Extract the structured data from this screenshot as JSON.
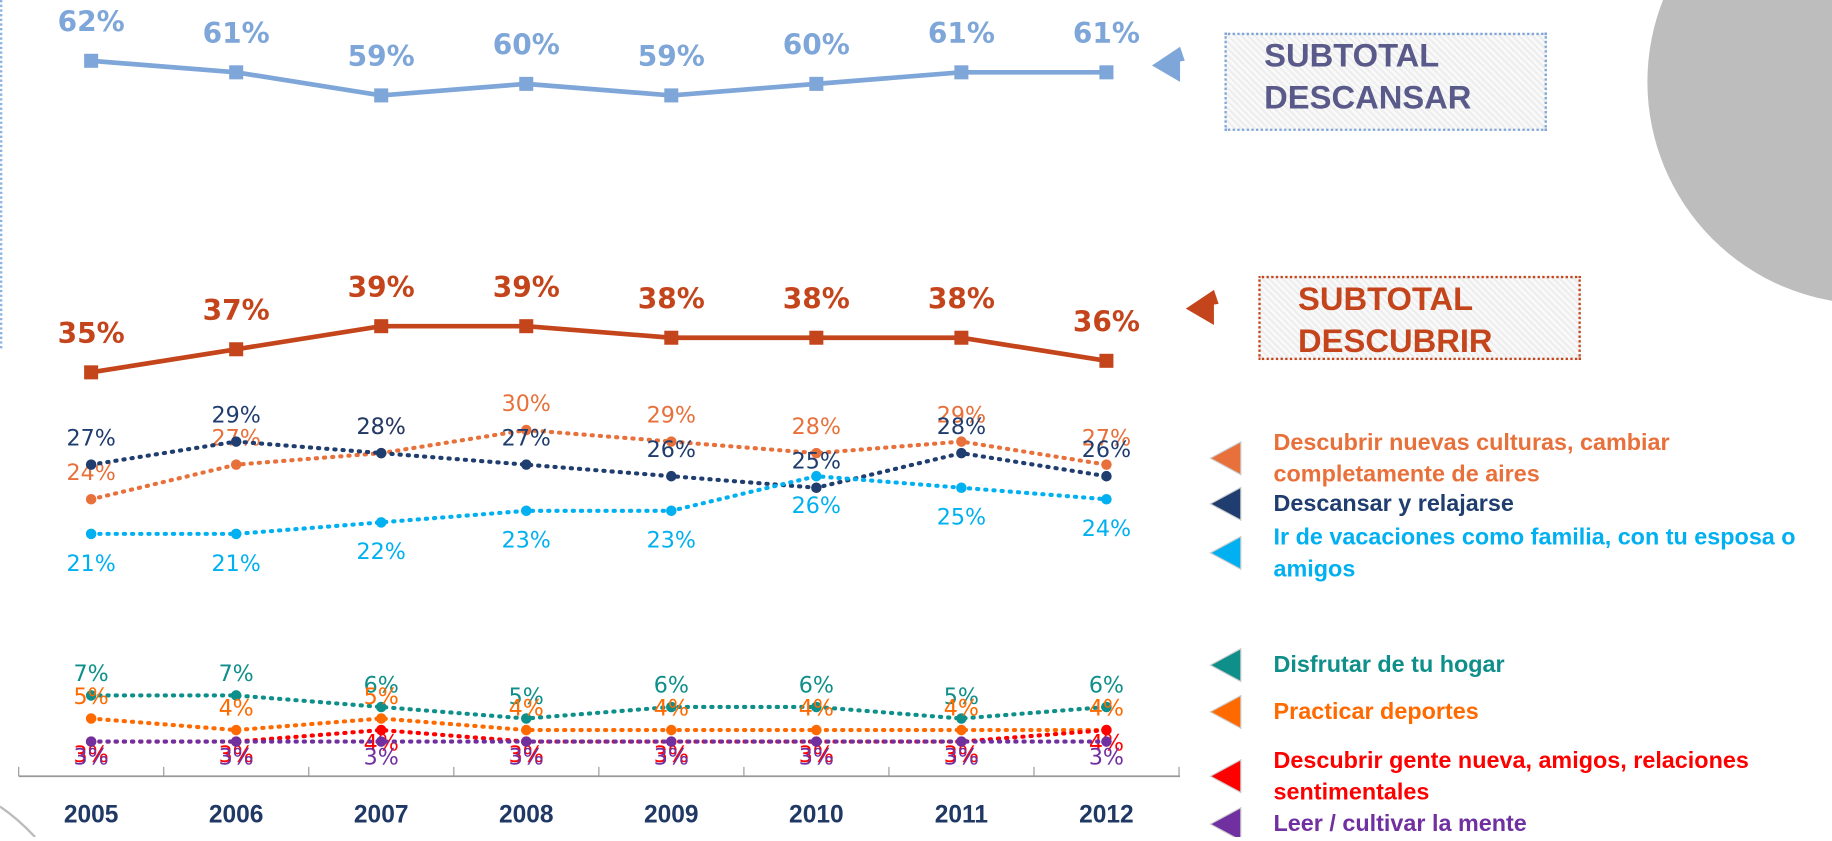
{
  "chart_data": {
    "type": "line",
    "categories": [
      "2005",
      "2006",
      "2007",
      "2008",
      "2009",
      "2010",
      "2011",
      "2012"
    ],
    "ylim": [
      0,
      67
    ],
    "series": [
      {
        "name": "SUBTOTAL DESCANSAR",
        "color": "#7ea6d8",
        "line_style": "solid",
        "values": [
          62,
          61,
          59,
          60,
          59,
          60,
          61,
          61
        ],
        "value_labels": [
          "62%",
          "61%",
          "59%",
          "60%",
          "59%",
          "60%",
          "61%",
          "61%"
        ]
      },
      {
        "name": "SUBTOTAL DESCUBRIR",
        "color": "#c4451c",
        "line_style": "solid",
        "values": [
          35,
          37,
          39,
          39,
          38,
          38,
          38,
          36
        ],
        "value_labels": [
          "35%",
          "37%",
          "39%",
          "39%",
          "38%",
          "38%",
          "38%",
          "36%"
        ]
      },
      {
        "name": "Descubrir nuevas culturas, cambiar completamente de aires",
        "color": "#e8703a",
        "line_style": "dotted",
        "values": [
          24,
          27,
          28,
          30,
          29,
          28,
          29,
          27
        ],
        "value_labels": [
          "24%",
          "27%",
          "28%",
          "30%",
          "29%",
          "28%",
          "29%",
          "27%"
        ]
      },
      {
        "name": "Descansar y relajarse",
        "color": "#1f3d6e",
        "line_style": "dotted",
        "values": [
          27,
          29,
          28,
          27,
          26,
          25,
          28,
          26
        ],
        "value_labels": [
          "27%",
          "29%",
          "28%",
          "27%",
          "26%",
          "25%",
          "28%",
          "26%"
        ]
      },
      {
        "name": "Ir de vacaciones como familia, con tu esposa o amigos",
        "color": "#00b0f0",
        "line_style": "dotted",
        "values": [
          21,
          21,
          22,
          23,
          23,
          26,
          25,
          24
        ],
        "value_labels": [
          "21%",
          "21%",
          "22%",
          "23%",
          "23%",
          "26%",
          "25%",
          "24%"
        ]
      },
      {
        "name": "Disfrutar de tu hogar",
        "color": "#0e8f8a",
        "line_style": "dotted",
        "values": [
          7,
          7,
          6,
          5,
          6,
          6,
          5,
          6
        ],
        "value_labels": [
          "7%",
          "7%",
          "6%",
          "5%",
          "6%",
          "6%",
          "5%",
          "6%"
        ]
      },
      {
        "name": "Practicar deportes",
        "color": "#ff6a00",
        "line_style": "dotted",
        "values": [
          5,
          4,
          5,
          4,
          4,
          4,
          4,
          4
        ],
        "value_labels": [
          "5%",
          "4%",
          "5%",
          "4%",
          "4%",
          "4%",
          "4%",
          "4%"
        ]
      },
      {
        "name": "Descubrir gente nueva, amigos, relaciones sentimentales",
        "color": "#ff0000",
        "line_style": "dotted",
        "values": [
          3,
          3,
          4,
          3,
          3,
          3,
          3,
          4
        ],
        "value_labels": [
          "3%",
          "3%",
          "4%",
          "3%",
          "3%",
          "3%",
          "3%",
          "4%"
        ]
      },
      {
        "name": "Leer / cultivar la mente",
        "color": "#7030a0",
        "line_style": "dotted",
        "values": [
          3,
          3,
          3,
          3,
          3,
          3,
          3,
          3
        ],
        "value_labels": [
          "3%",
          "3%",
          "3%",
          "3%",
          "3%",
          "3%",
          "3%",
          "3%"
        ]
      }
    ]
  }
}
